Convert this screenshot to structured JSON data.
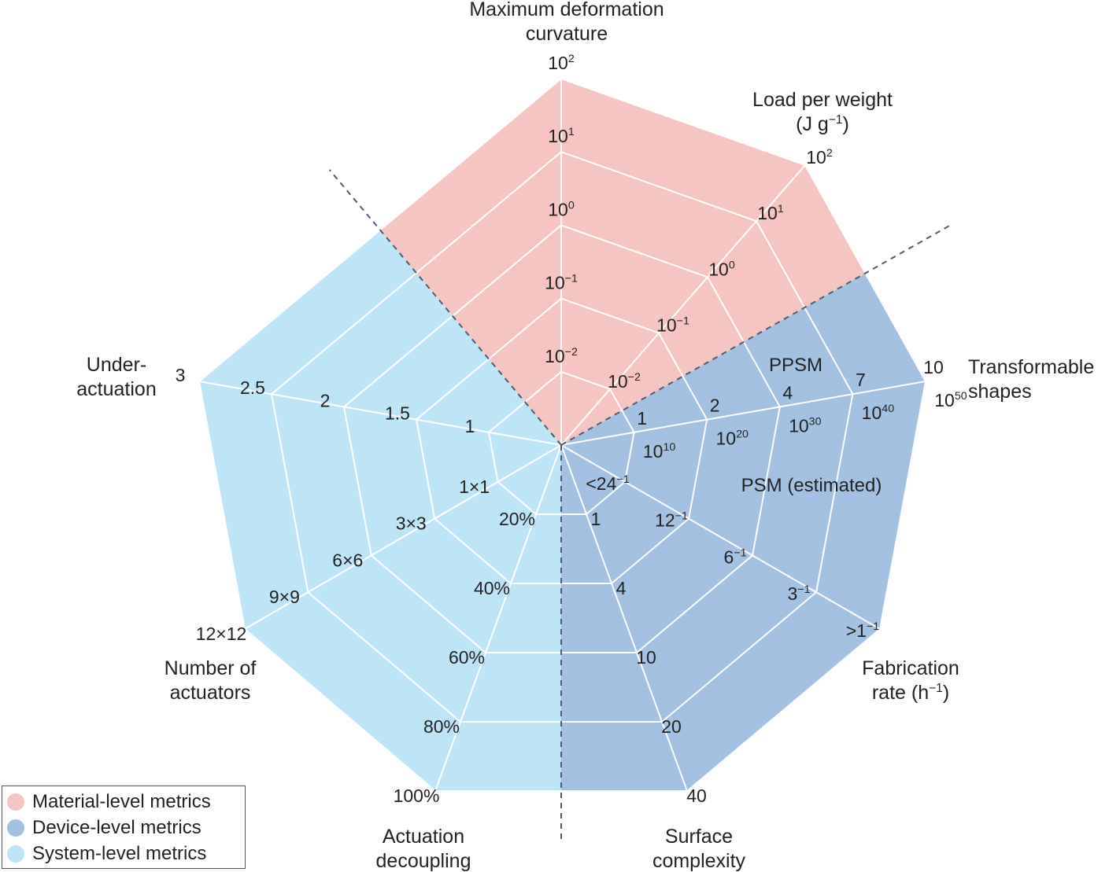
{
  "chart_data": {
    "type": "radar",
    "axes": [
      {
        "name": [
          "Maximum deformation",
          "curvature"
        ],
        "ticks": [
          "10^-2",
          "10^-1",
          "10^0",
          "10^1",
          "10^2"
        ]
      },
      {
        "name": [
          "Load  per weight",
          "(J g^-1)"
        ],
        "ticks": [
          "10^-2",
          "10^-1",
          "10^0",
          "10^1",
          "10^2"
        ]
      },
      {
        "name": [
          "Transformable",
          "shapes"
        ],
        "ticks": [
          "1|10^10",
          "2|10^20",
          "4|10^30",
          "7|10^40",
          "10|10^50"
        ]
      },
      {
        "name": [
          "Fabrication",
          "rate (h^-1)"
        ],
        "ticks": [
          "<24^-1",
          "12^-1",
          "6^-1",
          "3^-1",
          ">1^-1"
        ]
      },
      {
        "name": [
          "Surface",
          "complexity"
        ],
        "ticks": [
          "1",
          "4",
          "10",
          "20",
          "40"
        ]
      },
      {
        "name": [
          "Actuation",
          "decoupling"
        ],
        "ticks": [
          "20%",
          "40%",
          "60%",
          "80%",
          "100%"
        ]
      },
      {
        "name": [
          "Number of",
          "actuators"
        ],
        "ticks": [
          "1×1",
          "3×3",
          "6×6",
          "9×9",
          "12×12"
        ]
      },
      {
        "name": [
          "Under-",
          "actuation"
        ],
        "ticks": [
          "1",
          "1.5",
          "2",
          "2.5",
          "3"
        ]
      }
    ],
    "annotations": [
      "PPSM",
      "PSM (estimated)"
    ],
    "legend": [
      {
        "label": "Material-level metrics",
        "color": "#f7c5c1"
      },
      {
        "label": "Device-level metrics",
        "color": "#a3c1e3"
      },
      {
        "label": "System-level metrics",
        "color": "#bde5f8"
      }
    ],
    "legend_position": "bottom-left"
  }
}
